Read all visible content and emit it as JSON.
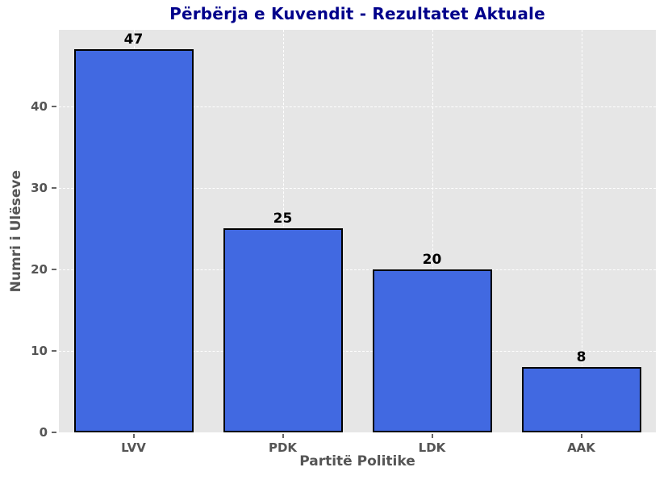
{
  "chart_data": {
    "type": "bar",
    "title": "Përbërja e Kuvendit - Rezultatet Aktuale",
    "xlabel": "Partitë Politike",
    "ylabel": "Numri i Ulëseve",
    "categories": [
      "LVV",
      "PDK",
      "LDK",
      "AAK"
    ],
    "values": [
      47,
      25,
      20,
      8
    ],
    "value_labels": [
      "47",
      "25",
      "20",
      "8"
    ],
    "yticks": [
      0,
      10,
      20,
      30,
      40
    ],
    "ylim": [
      0,
      49.35
    ],
    "bar_width_fraction": 0.8,
    "grid": {
      "axes": "both",
      "style": "dashed",
      "on": true
    },
    "legend": "none",
    "colors": {
      "title": "#00008B",
      "axis_label": "#555555",
      "tick_label": "#555555",
      "tick_mark": "#666666",
      "value_label": "#000000",
      "bar_fill": "#4169E1",
      "bar_edge": "#000000",
      "plot_background": "#E6E6E6",
      "grid_line": "#FFFFFF",
      "figure_background": "#FFFFFF"
    }
  }
}
